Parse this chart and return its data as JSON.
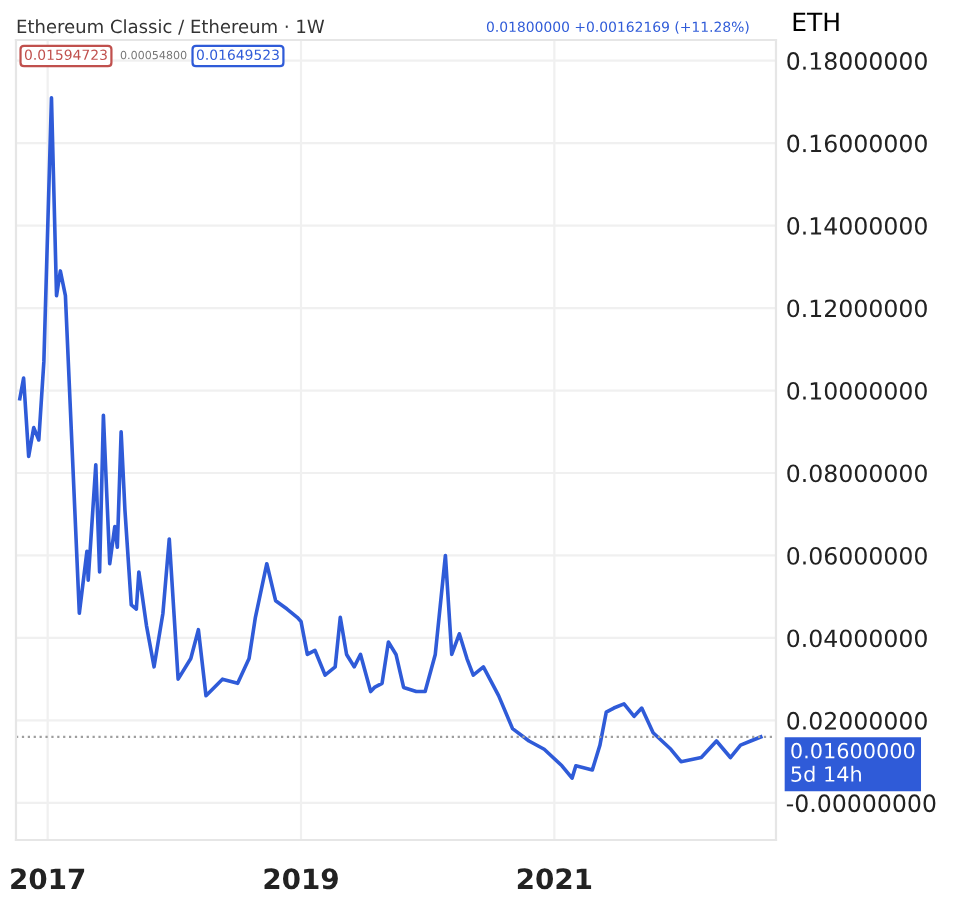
{
  "chart_data": {
    "type": "line",
    "title": "Ethereum Classic / Ethereum · 1W",
    "ylabel": "ETH",
    "annotations": [
      "0.01594723",
      "0.00054800",
      "0.01649523",
      "0.01800000 +0.00162169 (+11.28%)"
    ],
    "x": [
      2016.78,
      2016.81,
      2016.85,
      2016.89,
      2016.93,
      2016.97,
      2017.03,
      2017.07,
      2017.1,
      2017.14,
      2017.25,
      2017.31,
      2017.32,
      2017.38,
      2017.41,
      2017.44,
      2017.49,
      2017.53,
      2017.55,
      2017.58,
      2017.61,
      2017.66,
      2017.7,
      2017.72,
      2017.78,
      2017.84,
      2017.91,
      2017.96,
      2018.03,
      2018.13,
      2018.19,
      2018.25,
      2018.38,
      2018.5,
      2018.59,
      2018.64,
      2018.73,
      2018.8,
      2018.89,
      2018.97,
      2019.0,
      2019.05,
      2019.11,
      2019.19,
      2019.27,
      2019.31,
      2019.36,
      2019.42,
      2019.47,
      2019.55,
      2019.58,
      2019.64,
      2019.69,
      2019.75,
      2019.81,
      2019.91,
      2019.98,
      2020.06,
      2020.14,
      2020.19,
      2020.25,
      2020.31,
      2020.36,
      2020.44,
      2020.56,
      2020.67,
      2020.8,
      2020.92,
      2021.06,
      2021.14,
      2021.17,
      2021.3,
      2021.36,
      2021.41,
      2021.47,
      2021.55,
      2021.63,
      2021.69,
      2021.78,
      2021.92,
      2022.0,
      2022.16,
      2022.28,
      2022.39,
      2022.47,
      2022.55,
      2022.63
    ],
    "series": [
      {
        "color": "#2f5bd8",
        "values": [
          0.098,
          0.103,
          0.084,
          0.091,
          0.088,
          0.107,
          0.171,
          0.123,
          0.129,
          0.123,
          0.046,
          0.061,
          0.054,
          0.082,
          0.056,
          0.094,
          0.058,
          0.067,
          0.062,
          0.09,
          0.071,
          0.048,
          0.047,
          0.056,
          0.043,
          0.033,
          0.046,
          0.064,
          0.03,
          0.035,
          0.042,
          0.026,
          0.03,
          0.029,
          0.035,
          0.045,
          0.058,
          0.049,
          0.047,
          0.045,
          0.044,
          0.036,
          0.037,
          0.031,
          0.033,
          0.045,
          0.036,
          0.033,
          0.036,
          0.027,
          0.028,
          0.029,
          0.039,
          0.036,
          0.028,
          0.027,
          0.027,
          0.036,
          0.06,
          0.036,
          0.041,
          0.035,
          0.031,
          0.033,
          0.026,
          0.018,
          0.015,
          0.013,
          0.009,
          0.006,
          0.009,
          0.008,
          0.014,
          0.022,
          0.023,
          0.024,
          0.021,
          0.023,
          0.017,
          0.013,
          0.01,
          0.011,
          0.015,
          0.011,
          0.014,
          0.015,
          0.016
        ]
      }
    ],
    "xlim": [
      2016.75,
      2022.75
    ],
    "xticks": [
      2017,
      2019,
      2021
    ],
    "ylim": [
      -0.009,
      0.185
    ],
    "yticks": [
      {
        "value": 0,
        "label": "-0.00000000"
      },
      {
        "value": 0.02,
        "label": "0.02000000"
      },
      {
        "value": 0.04,
        "label": "0.04000000"
      },
      {
        "value": 0.06,
        "label": "0.06000000"
      },
      {
        "value": 0.08,
        "label": "0.08000000"
      },
      {
        "value": 0.1,
        "label": "0.10000000"
      },
      {
        "value": 0.12,
        "label": "0.12000000"
      },
      {
        "value": 0.14,
        "label": "0.14000000"
      },
      {
        "value": 0.16,
        "label": "0.16000000"
      },
      {
        "value": 0.18,
        "label": "0.18000000"
      }
    ],
    "ref_lines": [
      {
        "axis": "y",
        "value": 0.016,
        "label": "0.01600000\n5d 14h",
        "color": "#9e9e9e",
        "line_style": "dotted"
      }
    ],
    "grid": true,
    "marker": "none",
    "line_style": "solid"
  }
}
